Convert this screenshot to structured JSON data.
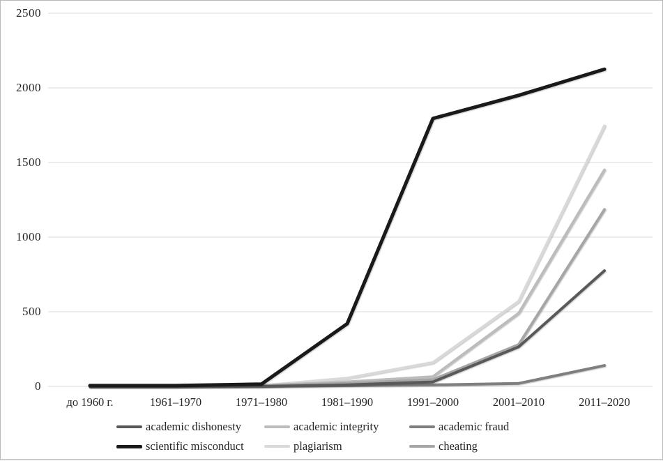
{
  "figure": {
    "background": "#ffffff",
    "border_color": "#b9b9b9"
  },
  "chart_data": {
    "type": "line",
    "title": "",
    "xlabel": "",
    "ylabel": "",
    "categories": [
      "до 1960 г.",
      "1961–1970",
      "1971–1980",
      "1981–1990",
      "1991–2000",
      "2001–2010",
      "2011–2020"
    ],
    "series": [
      {
        "name": "academic dishonesty",
        "color": "#595959",
        "stroke_width": 4,
        "values": [
          0,
          0,
          0,
          10,
          30,
          265,
          775
        ]
      },
      {
        "name": "academic integrity",
        "color": "#bcbcbc",
        "stroke_width": 4,
        "values": [
          0,
          0,
          5,
          30,
          65,
          490,
          1450
        ]
      },
      {
        "name": "academic fraud",
        "color": "#7f7f7f",
        "stroke_width": 4,
        "values": [
          0,
          0,
          0,
          5,
          10,
          20,
          140
        ]
      },
      {
        "name": "scientific misconduct",
        "color": "#1a1a1a",
        "stroke_width": 5,
        "values": [
          5,
          5,
          15,
          420,
          1795,
          1950,
          2125
        ]
      },
      {
        "name": "plagiarism",
        "color": "#d9d9d9",
        "stroke_width": 4,
        "values": [
          0,
          0,
          5,
          55,
          160,
          570,
          1745
        ]
      },
      {
        "name": "cheating",
        "color": "#a6a6a6",
        "stroke_width": 4,
        "values": [
          0,
          0,
          5,
          20,
          45,
          280,
          1185
        ]
      }
    ],
    "ylim": [
      0,
      2500
    ],
    "y_ticks": [
      0,
      500,
      1000,
      1500,
      2000,
      2500
    ],
    "grid": true,
    "legend_position": "bottom",
    "legend_rows": [
      [
        "academic dishonesty",
        "academic integrity",
        "academic fraud"
      ],
      [
        "scientific misconduct",
        "plagiarism",
        "cheating"
      ]
    ],
    "draw_order": [
      "plagiarism",
      "academic integrity",
      "cheating",
      "academic fraud",
      "academic dishonesty",
      "scientific misconduct"
    ]
  }
}
